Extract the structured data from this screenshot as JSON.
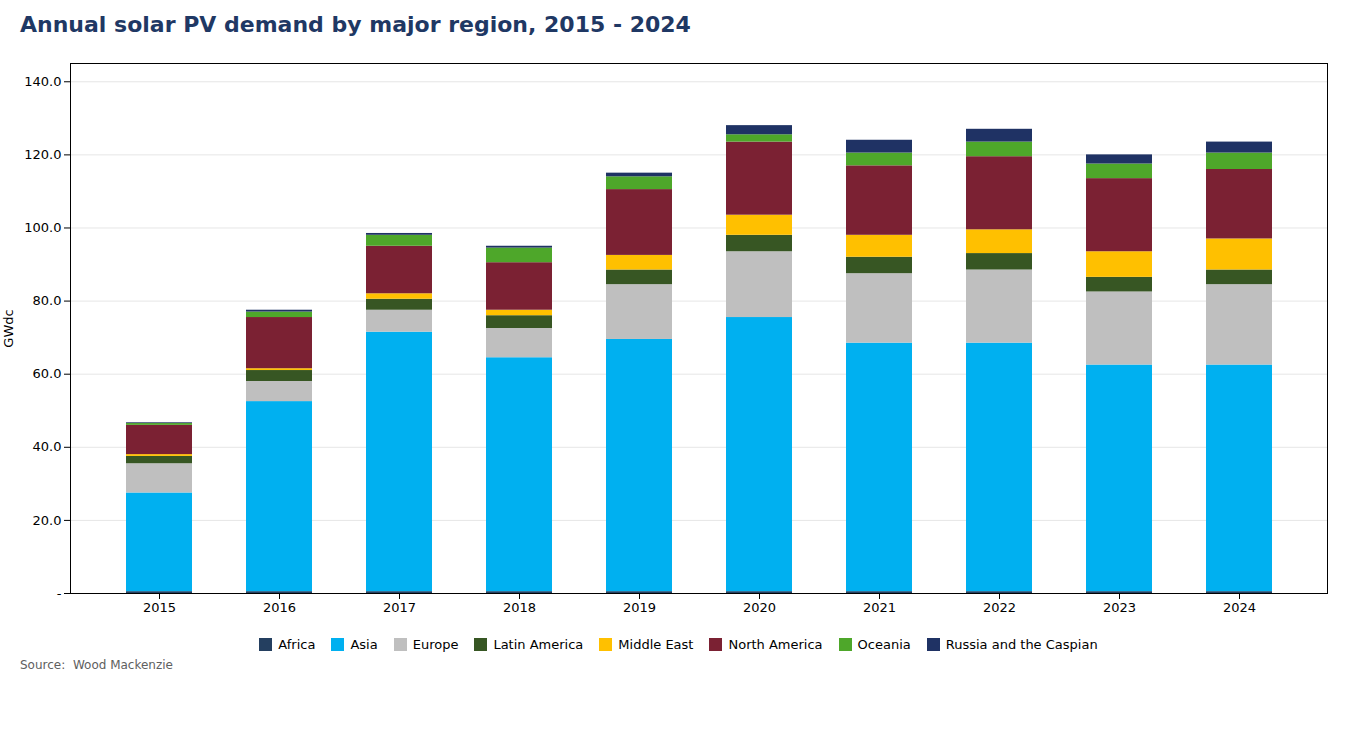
{
  "chart_data": {
    "type": "bar",
    "title": "Annual solar PV demand by major region, 2015 - 2024",
    "ylabel": "GWdc",
    "source": "Source:  Wood Mackenzie",
    "categories": [
      "2015",
      "2016",
      "2017",
      "2018",
      "2019",
      "2020",
      "2021",
      "2022",
      "2023",
      "2024"
    ],
    "series": [
      {
        "name": "Africa",
        "color": "#243f60",
        "values": [
          0.5,
          0.5,
          0.5,
          0.5,
          0.5,
          0.5,
          0.5,
          0.5,
          0.5,
          0.5
        ]
      },
      {
        "name": "Asia",
        "color": "#00b0f0",
        "values": [
          27.0,
          52.0,
          71.0,
          64.0,
          69.0,
          75.0,
          68.0,
          68.0,
          62.0,
          62.0
        ]
      },
      {
        "name": "Europe",
        "color": "#bfbfbf",
        "values": [
          8.0,
          5.5,
          6.0,
          8.0,
          15.0,
          18.0,
          19.0,
          20.0,
          20.0,
          22.0
        ]
      },
      {
        "name": "Latin America",
        "color": "#375623",
        "values": [
          2.0,
          3.0,
          3.0,
          3.5,
          4.0,
          4.5,
          4.5,
          4.5,
          4.0,
          4.0
        ]
      },
      {
        "name": "Middle East",
        "color": "#ffc000",
        "values": [
          0.5,
          0.5,
          1.5,
          1.5,
          4.0,
          5.5,
          6.0,
          6.5,
          7.0,
          8.5
        ]
      },
      {
        "name": "North America",
        "color": "#7b2133",
        "values": [
          8.0,
          14.0,
          13.0,
          13.0,
          18.0,
          20.0,
          19.0,
          20.0,
          20.0,
          19.0
        ]
      },
      {
        "name": "Oceania",
        "color": "#4ea72a",
        "values": [
          0.5,
          1.5,
          3.0,
          4.0,
          3.5,
          2.0,
          3.5,
          4.0,
          4.0,
          4.5
        ]
      },
      {
        "name": "Russia and the Caspian",
        "color": "#1f3264",
        "values": [
          0.2,
          0.5,
          0.5,
          0.5,
          1.0,
          2.5,
          3.5,
          3.5,
          2.5,
          3.0
        ]
      }
    ],
    "stacked": true,
    "ylim": [
      0,
      145
    ],
    "yticks": [
      {
        "value": 0,
        "label": "-"
      },
      {
        "value": 20,
        "label": "20.0"
      },
      {
        "value": 40,
        "label": "40.0"
      },
      {
        "value": 60,
        "label": "60.0"
      },
      {
        "value": 80,
        "label": "80.0"
      },
      {
        "value": 100,
        "label": "100.0"
      },
      {
        "value": 120,
        "label": "120.0"
      },
      {
        "value": 140,
        "label": "140.0"
      }
    ],
    "grid": true,
    "legend": "bottom"
  }
}
